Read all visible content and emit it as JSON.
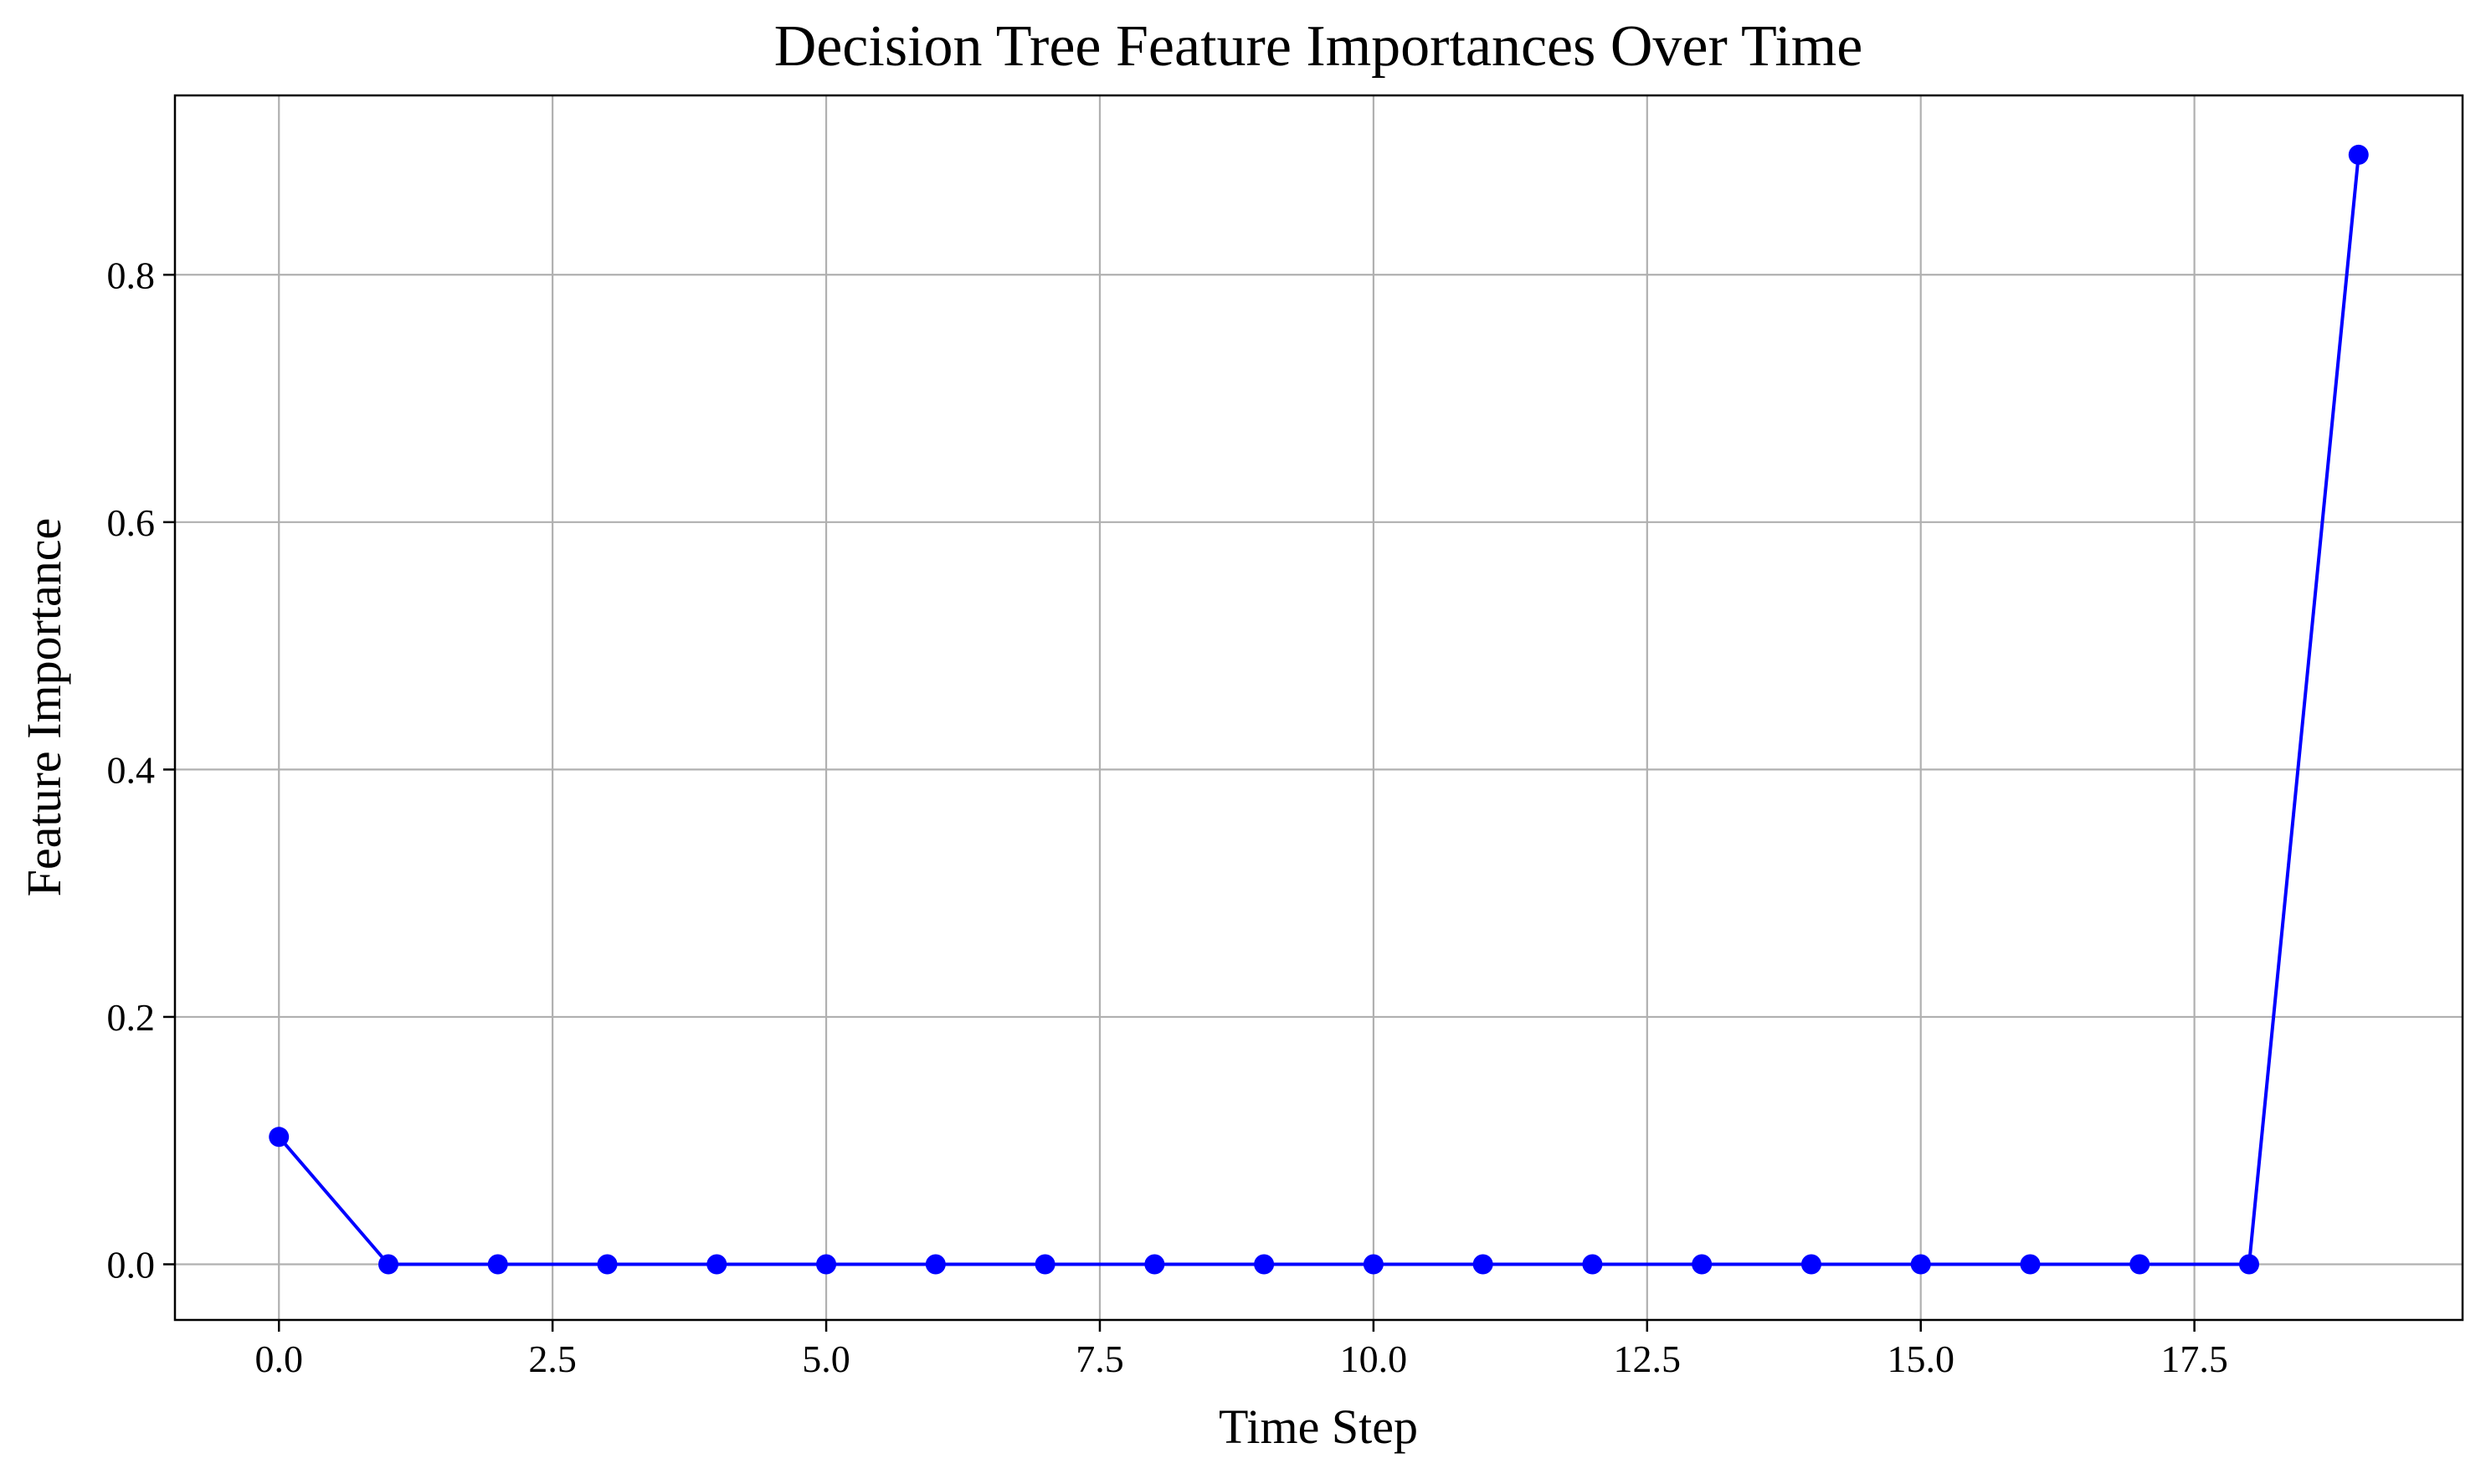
{
  "chart_data": {
    "type": "line",
    "title": "Decision Tree Feature Importances Over Time",
    "xlabel": "Time Step",
    "ylabel": "Feature Importance",
    "xlim": [
      -0.95,
      19.95
    ],
    "ylim": [
      -0.045,
      0.945
    ],
    "xticks": [
      0,
      2.5,
      5,
      7.5,
      10,
      12.5,
      15,
      17.5
    ],
    "xtick_labels": [
      "0.0",
      "2.5",
      "5.0",
      "7.5",
      "10.0",
      "12.5",
      "15.0",
      "17.5"
    ],
    "yticks": [
      0,
      0.2,
      0.4,
      0.6,
      0.8
    ],
    "ytick_labels": [
      "0.0",
      "0.2",
      "0.4",
      "0.6",
      "0.8"
    ],
    "grid": true,
    "series": [
      {
        "color": "#0000ff",
        "marker": "circle",
        "x": [
          0,
          1,
          2,
          3,
          4,
          5,
          6,
          7,
          8,
          9,
          10,
          11,
          12,
          13,
          14,
          15,
          16,
          17,
          18,
          19
        ],
        "y": [
          0.103,
          0,
          0,
          0,
          0,
          0,
          0,
          0,
          0,
          0,
          0,
          0,
          0,
          0,
          0,
          0,
          0,
          0,
          0,
          0.897
        ]
      }
    ]
  }
}
